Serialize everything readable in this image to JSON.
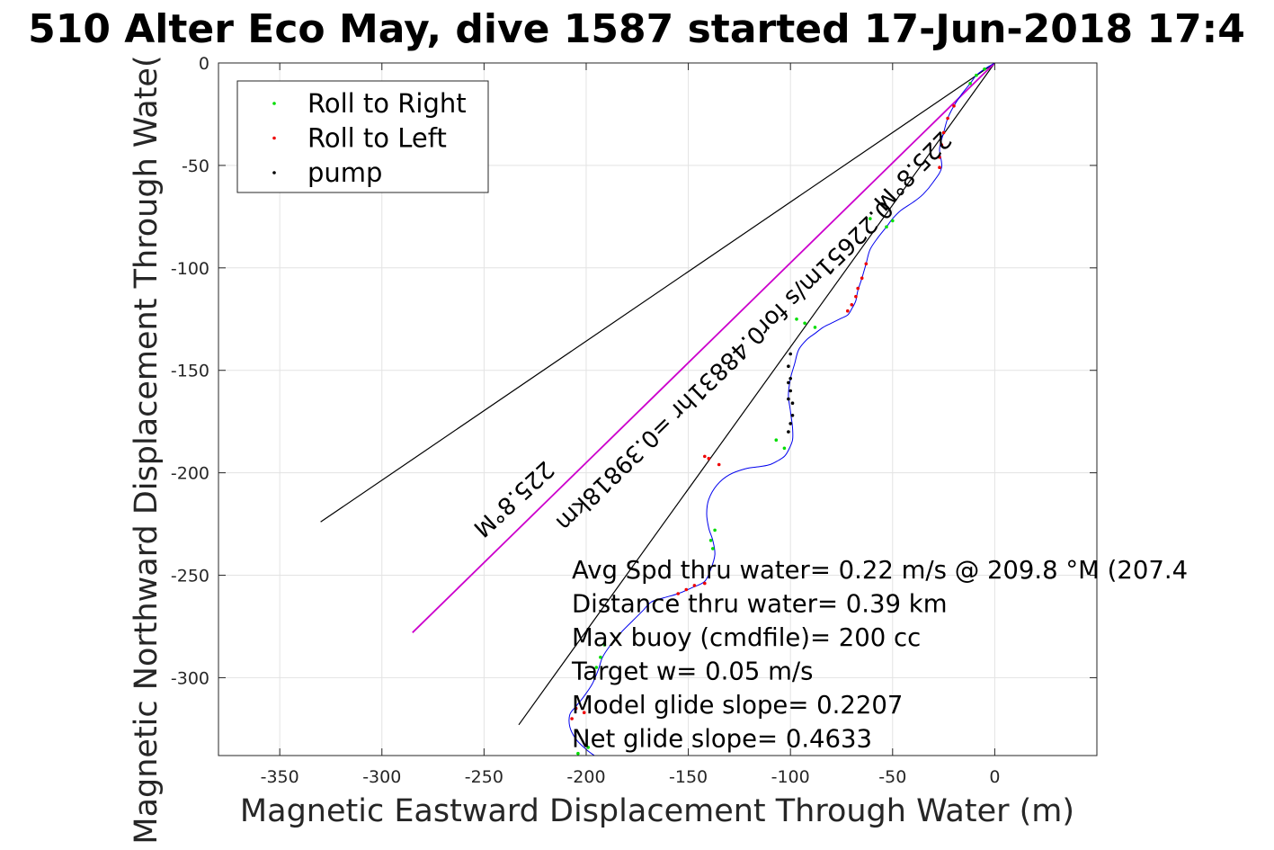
{
  "chart_data": {
    "type": "line",
    "title": "510 Alter Eco May, dive 1587 started 17-Jun-2018 17:4",
    "xlabel": "Magnetic Eastward Displacement Through Water (m)",
    "ylabel": "Magnetic Northward Displacement Through Wate(",
    "xlim": [
      -380,
      50
    ],
    "ylim": [
      -338,
      0
    ],
    "xticks": [
      -350,
      -300,
      -250,
      -200,
      -150,
      -100,
      -50,
      0
    ],
    "yticks": [
      0,
      -50,
      -100,
      -150,
      -200,
      -250,
      -300
    ],
    "grid": true,
    "legend": {
      "placement": "top-left",
      "entries": [
        {
          "label": "Roll to Right",
          "color": "#00dd00"
        },
        {
          "label": "Roll to Left",
          "color": "#ee0000"
        },
        {
          "label": "pump",
          "color": "#000000"
        }
      ]
    },
    "colors": {
      "track": "#0000ee",
      "heading_line": "#cc00cc",
      "cone_lines": "#000000",
      "roll_right": "#00dd00",
      "roll_left": "#ee0000",
      "pump": "#000000"
    },
    "track": {
      "x": [
        0,
        -5,
        -9,
        -12,
        -16,
        -20,
        -23,
        -25,
        -27,
        -26,
        -30,
        -35,
        -40,
        -46,
        -50,
        -53,
        -57,
        -61,
        -63,
        -65,
        -67,
        -68,
        -70,
        -72,
        -76,
        -80,
        -84,
        -88,
        -92,
        -96,
        -98,
        -100,
        -101,
        -100,
        -99,
        -99,
        -101,
        -103,
        -106,
        -110,
        -115,
        -122,
        -130,
        -136,
        -140,
        -141,
        -140,
        -138,
        -137,
        -139,
        -142,
        -148,
        -155,
        -162,
        -168,
        -172,
        -177,
        -183,
        -188,
        -192,
        -194,
        -197,
        -201,
        -205,
        -208,
        -208,
        -205,
        -200,
        -196
      ],
      "y": [
        0,
        -3,
        -6,
        -10,
        -15,
        -21,
        -27,
        -34,
        -42,
        -51,
        -58,
        -64,
        -68,
        -72,
        -76,
        -80,
        -85,
        -91,
        -98,
        -105,
        -111,
        -116,
        -120,
        -123,
        -125,
        -127,
        -129,
        -132,
        -135,
        -140,
        -147,
        -154,
        -162,
        -170,
        -178,
        -184,
        -189,
        -192,
        -194,
        -196,
        -197,
        -198,
        -201,
        -206,
        -213,
        -220,
        -227,
        -233,
        -240,
        -247,
        -253,
        -256,
        -259,
        -261,
        -263,
        -267,
        -272,
        -278,
        -284,
        -290,
        -296,
        -303,
        -309,
        -314,
        -318,
        -324,
        -330,
        -335,
        -338
      ]
    },
    "heading_line": {
      "x": [
        0,
        -285
      ],
      "y": [
        0,
        -278
      ]
    },
    "cone_lines": [
      {
        "x": [
          0,
          -330
        ],
        "y": [
          0,
          -224
        ]
      },
      {
        "x": [
          0,
          -233
        ],
        "y": [
          0,
          -323
        ]
      }
    ],
    "markers": [
      {
        "label": "Roll to Right",
        "x": [
          -5,
          -9,
          -12,
          -61,
          -53,
          -50,
          -97,
          -93,
          -88,
          -103,
          -107,
          -137,
          -139,
          -138,
          -191,
          -193,
          -195,
          -199,
          -204
        ],
        "y": [
          -3,
          -6,
          -10,
          -76,
          -80,
          -77,
          -125,
          -127,
          -129,
          -188,
          -184,
          -228,
          -233,
          -237,
          -284,
          -290,
          -295,
          -334,
          -337
        ]
      },
      {
        "x": [
          -20,
          -23,
          -25,
          -26,
          -27,
          -27,
          -63,
          -65,
          -67,
          -68,
          -70,
          -72,
          -135,
          -140,
          -142,
          -142,
          -147,
          -151,
          -155,
          -201,
          -205,
          -207
        ],
        "y": [
          -21,
          -27,
          -34,
          -40,
          -46,
          -51,
          -98,
          -105,
          -110,
          -114,
          -118,
          -121,
          -196,
          -193,
          -192,
          -254,
          -255,
          -257,
          -259,
          -317,
          -315,
          -320
        ],
        "label": "Roll to Left"
      },
      {
        "label": "pump",
        "x": [
          -100,
          -101,
          -100,
          -100,
          -99,
          -99,
          -100,
          -101,
          -101,
          -101
        ],
        "y": [
          -142,
          -148,
          -154,
          -160,
          -166,
          -172,
          -176,
          -180,
          -164,
          -156
        ]
      }
    ],
    "annotations": [
      {
        "text": "225.8°M",
        "x": -43,
        "y": -50,
        "angle": 134.2
      },
      {
        "text": "0.22651m/s for0.48831hr =0.39818km",
        "x": -135,
        "y": -145,
        "angle": 135.6
      },
      {
        "text": "225.8°M",
        "x": -238,
        "y": -210,
        "angle": 137.4
      }
    ],
    "stats": [
      "Avg Spd thru water=  0.22 m/s @ 209.8 °M (207.4",
      "Distance thru water=  0.39 km",
      "Max buoy (cmdfile)= 200 cc",
      "Target w= 0.05 m/s",
      "Model glide slope= 0.2207",
      "Net glide slope= 0.4633"
    ]
  }
}
